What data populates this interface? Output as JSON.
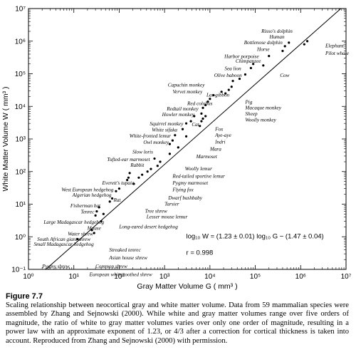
{
  "chart_data": {
    "type": "scatter",
    "scale": "log-log",
    "xlabel": "Gray Matter Volume  G ( mm³ )",
    "ylabel": "White Matter Volume  W ( mm³ )",
    "xlim": [
      1,
      10000000
    ],
    "ylim": [
      0.1,
      10000000
    ],
    "x_ticks": [
      1,
      10,
      100,
      1000,
      10000,
      100000,
      1000000,
      10000000
    ],
    "y_ticks": [
      0.1,
      1,
      10,
      100,
      1000,
      10000,
      100000,
      1000000,
      10000000
    ],
    "x_tick_labels": [
      "10⁰",
      "10¹",
      "10²",
      "10³",
      "10⁴",
      "10⁵",
      "10⁶",
      "10⁷"
    ],
    "y_tick_labels": [
      "10⁻¹",
      "10⁰",
      "10¹",
      "10²",
      "10³",
      "10⁴",
      "10⁵",
      "10⁶",
      "10⁷"
    ],
    "grid": false,
    "fit": {
      "slope": 1.23,
      "intercept": -1.47
    },
    "equation": "log₁₀ W = (1.23 ± 0.01) log₁₀ G − (1.47 ± 0.04)",
    "r_text": "r = 0.998",
    "points": [
      {
        "name": "Pygmy shrew",
        "x": 12,
        "y": 0.85
      },
      {
        "name": "Common shrew",
        "x": 25,
        "y": 1.6
      },
      {
        "name": "European white-toothed shrew",
        "x": 28,
        "y": 1.3
      },
      {
        "name": "Asian house shrew",
        "x": 40,
        "y": 3
      },
      {
        "name": "Streaked tenrec",
        "x": 45,
        "y": 5
      },
      {
        "name": "Small Madagascar hedgehog",
        "x": 30,
        "y": 4.5
      },
      {
        "name": "South African giant shrew",
        "x": 32,
        "y": 6
      },
      {
        "name": "Water shrew",
        "x": 36,
        "y": 8
      },
      {
        "name": "Large Madagascar hedgehog",
        "x": 62,
        "y": 12
      },
      {
        "name": "Mouse",
        "x": 70,
        "y": 15
      },
      {
        "name": "Tenrec",
        "x": 85,
        "y": 25
      },
      {
        "name": "Fisherman bat",
        "x": 100,
        "y": 30
      },
      {
        "name": "Rat",
        "x": 150,
        "y": 55
      },
      {
        "name": "Algerian hedgehog",
        "x": 160,
        "y": 65
      },
      {
        "name": "West European hedgehog",
        "x": 170,
        "y": 90
      },
      {
        "name": "Long-eared desert hedgehog",
        "x": 210,
        "y": 42
      },
      {
        "name": "Lesser mouse lemur",
        "x": 270,
        "y": 65
      },
      {
        "name": "Tree shrew",
        "x": 320,
        "y": 80
      },
      {
        "name": "Tarsier",
        "x": 420,
        "y": 100
      },
      {
        "name": "Dwarf bushbaby",
        "x": 500,
        "y": 120
      },
      {
        "name": "Flying fox",
        "x": 700,
        "y": 150
      },
      {
        "name": "Everett's tupaia",
        "x": 600,
        "y": 250
      },
      {
        "name": "Pygmy marmoset",
        "x": 800,
        "y": 200
      },
      {
        "name": "Red-tailed sportive lemur",
        "x": 1300,
        "y": 350
      },
      {
        "name": "Woolly lemur",
        "x": 2000,
        "y": 550
      },
      {
        "name": "Rabbit",
        "x": 1300,
        "y": 700
      },
      {
        "name": "Tufted-ear marmoset",
        "x": 1500,
        "y": 900
      },
      {
        "name": "Slow loris",
        "x": 1700,
        "y": 1300
      },
      {
        "name": "Marmoset",
        "x": 3000,
        "y": 1200
      },
      {
        "name": "Owl monkey",
        "x": 2500,
        "y": 2000
      },
      {
        "name": "White-fronted lemur",
        "x": 3000,
        "y": 3000
      },
      {
        "name": "White sifaka",
        "x": 3800,
        "y": 3500
      },
      {
        "name": "Squirrel monkey",
        "x": 4500,
        "y": 5000
      },
      {
        "name": "Mara",
        "x": 6000,
        "y": 2500
      },
      {
        "name": "Indri",
        "x": 6500,
        "y": 3500
      },
      {
        "name": "Aye-aye",
        "x": 7000,
        "y": 4200
      },
      {
        "name": "Fox",
        "x": 8000,
        "y": 5000
      },
      {
        "name": "Cat",
        "x": 6500,
        "y": 6000
      },
      {
        "name": "Howler monkey",
        "x": 7000,
        "y": 9000
      },
      {
        "name": "Redtail monkey",
        "x": 8000,
        "y": 11000
      },
      {
        "name": "Red colobus",
        "x": 9000,
        "y": 14000
      },
      {
        "name": "Vervet monkey",
        "x": 10000,
        "y": 17000
      },
      {
        "name": "Capuchin monkey",
        "x": 12000,
        "y": 22000
      },
      {
        "name": "Lar gibbon",
        "x": 18000,
        "y": 28000
      },
      {
        "name": "Woolly monkey",
        "x": 22000,
        "y": 25000
      },
      {
        "name": "Sheep",
        "x": 26000,
        "y": 32000
      },
      {
        "name": "Macaque monkey",
        "x": 30000,
        "y": 40000
      },
      {
        "name": "Pig",
        "x": 32000,
        "y": 60000
      },
      {
        "name": "Olive baboon",
        "x": 45000,
        "y": 70000
      },
      {
        "name": "Sea lion",
        "x": 60000,
        "y": 95000
      },
      {
        "name": "Chimpanzee",
        "x": 80000,
        "y": 150000
      },
      {
        "name": "Harbor porpoise",
        "x": 90000,
        "y": 200000
      },
      {
        "name": "Cow",
        "x": 150000,
        "y": 180000
      },
      {
        "name": "Horse",
        "x": 200000,
        "y": 350000
      },
      {
        "name": "Bottlenose dolphin",
        "x": 400000,
        "y": 500000
      },
      {
        "name": "Human",
        "x": 450000,
        "y": 700000
      },
      {
        "name": "Risso's dolphin",
        "x": 550000,
        "y": 900000
      },
      {
        "name": "Pilot whale",
        "x": 1200000,
        "y": 800000
      },
      {
        "name": "Elephant",
        "x": 1400000,
        "y": 1000000
      }
    ],
    "labels": [
      {
        "text": "Risso's dolphin",
        "x": 300000,
        "y": 1800000,
        "anchor": "middle"
      },
      {
        "text": "Human",
        "x": 300000,
        "y": 1200000,
        "anchor": "middle"
      },
      {
        "text": "Bottlenose dolphin",
        "x": 150000,
        "y": 800000,
        "anchor": "middle"
      },
      {
        "text": "Horse",
        "x": 150000,
        "y": 500000,
        "anchor": "middle"
      },
      {
        "text": "Harbor porpoise",
        "x": 50000,
        "y": 300000,
        "anchor": "middle"
      },
      {
        "text": "Chimpanzee",
        "x": 70000,
        "y": 220000,
        "anchor": "middle"
      },
      {
        "text": "Sea lion",
        "x": 32000,
        "y": 130000,
        "anchor": "middle"
      },
      {
        "text": "Olive baboon",
        "x": 25000,
        "y": 80000,
        "anchor": "middle"
      },
      {
        "text": "Elephant",
        "x": 3500000,
        "y": 650000,
        "anchor": "start"
      },
      {
        "text": "Pilot whale",
        "x": 3500000,
        "y": 380000,
        "anchor": "start"
      },
      {
        "text": "Cow",
        "x": 350000,
        "y": 80000,
        "anchor": "start"
      },
      {
        "text": "Capuchin monkey",
        "x": 3000,
        "y": 40000,
        "anchor": "middle"
      },
      {
        "text": "Vervet monkey",
        "x": 3200,
        "y": 25000,
        "anchor": "middle"
      },
      {
        "text": "Lar gibbon",
        "x": 15000,
        "y": 20000,
        "anchor": "middle"
      },
      {
        "text": "Red colobus",
        "x": 6000,
        "y": 11000,
        "anchor": "middle"
      },
      {
        "text": "Redtail monkey",
        "x": 2500,
        "y": 7500,
        "anchor": "middle"
      },
      {
        "text": "Howler monkey",
        "x": 2000,
        "y": 5000,
        "anchor": "middle"
      },
      {
        "text": "Pig",
        "x": 60000,
        "y": 12000,
        "anchor": "start"
      },
      {
        "text": "Macaque monkey",
        "x": 60000,
        "y": 8000,
        "anchor": "start"
      },
      {
        "text": "Sheep",
        "x": 60000,
        "y": 5200,
        "anchor": "start"
      },
      {
        "text": "Woolly monkey",
        "x": 60000,
        "y": 3400,
        "anchor": "start"
      },
      {
        "text": "Squirrel monkey",
        "x": 1100,
        "y": 2600,
        "anchor": "middle"
      },
      {
        "text": "Cat",
        "x": 4800,
        "y": 2500,
        "anchor": "middle"
      },
      {
        "text": "White sifaka",
        "x": 1000,
        "y": 1700,
        "anchor": "middle"
      },
      {
        "text": "White-fronted lemur",
        "x": 480,
        "y": 1100,
        "anchor": "middle"
      },
      {
        "text": "Owl monkey",
        "x": 650,
        "y": 700,
        "anchor": "middle"
      },
      {
        "text": "Fox",
        "x": 13000,
        "y": 1800,
        "anchor": "start"
      },
      {
        "text": "Aye-aye",
        "x": 13000,
        "y": 1150,
        "anchor": "start"
      },
      {
        "text": "Indri",
        "x": 13000,
        "y": 730,
        "anchor": "start"
      },
      {
        "text": "Mara",
        "x": 10000,
        "y": 440,
        "anchor": "start"
      },
      {
        "text": "Slow loris",
        "x": 330,
        "y": 360,
        "anchor": "middle"
      },
      {
        "text": "Marmoset",
        "x": 5000,
        "y": 260,
        "anchor": "start"
      },
      {
        "text": "Tufted-ear marmoset",
        "x": 160,
        "y": 210,
        "anchor": "middle"
      },
      {
        "text": "Rabbit",
        "x": 250,
        "y": 140,
        "anchor": "middle"
      },
      {
        "text": "Woolly lemur",
        "x": 2800,
        "y": 110,
        "anchor": "start"
      },
      {
        "text": "Red-tailed sportive lemur",
        "x": 1500,
        "y": 65,
        "anchor": "start"
      },
      {
        "text": "Everett's tupaia",
        "x": 95,
        "y": 40,
        "anchor": "middle"
      },
      {
        "text": "Pygmy marmoset",
        "x": 1500,
        "y": 40,
        "anchor": "start"
      },
      {
        "text": "Flying fox",
        "x": 1500,
        "y": 25,
        "anchor": "start"
      },
      {
        "text": "West European hedgehog",
        "x": 20,
        "y": 25,
        "anchor": "middle"
      },
      {
        "text": "Algerian hedgehog",
        "x": 25,
        "y": 17,
        "anchor": "middle"
      },
      {
        "text": "Dwarf bushbaby",
        "x": 1200,
        "y": 14,
        "anchor": "start"
      },
      {
        "text": "Rat",
        "x": 90,
        "y": 12,
        "anchor": "middle"
      },
      {
        "text": "Tarsier",
        "x": 1000,
        "y": 9,
        "anchor": "start"
      },
      {
        "text": "Fisherman bat",
        "x": 18,
        "y": 8,
        "anchor": "middle"
      },
      {
        "text": "Tree shrew",
        "x": 370,
        "y": 5.5,
        "anchor": "start"
      },
      {
        "text": "Tenrec",
        "x": 20,
        "y": 5.2,
        "anchor": "middle"
      },
      {
        "text": "Lesser mouse lemur",
        "x": 400,
        "y": 3.7,
        "anchor": "start"
      },
      {
        "text": "Large Madagascar hedgehog",
        "x": 10,
        "y": 2.5,
        "anchor": "middle"
      },
      {
        "text": "Long-eared desert hedgehog",
        "x": 100,
        "y": 1.8,
        "anchor": "start"
      },
      {
        "text": "Mouse",
        "x": 28,
        "y": 1.65,
        "anchor": "middle"
      },
      {
        "text": "Water shrew",
        "x": 14,
        "y": 1.1,
        "anchor": "middle"
      },
      {
        "text": "South African giant shrew",
        "x": 6,
        "y": 0.75,
        "anchor": "middle"
      },
      {
        "text": "Small Madagascar hedgehog",
        "x": 6,
        "y": 0.52,
        "anchor": "middle"
      },
      {
        "text": "Streaked tenrec",
        "x": 60,
        "y": 0.35,
        "anchor": "start"
      },
      {
        "text": "Asian house shrew",
        "x": 60,
        "y": 0.2,
        "anchor": "start"
      },
      {
        "text": "Pygmy shrew",
        "x": 4,
        "y": 0.11,
        "anchor": "middle"
      },
      {
        "text": "Common shrew",
        "x": 30,
        "y": 0.11,
        "anchor": "start"
      },
      {
        "text": "European white-toothed shrew",
        "x": 22,
        "y": 0.062,
        "anchor": "start"
      }
    ]
  },
  "caption": {
    "title": "Figure 7.7",
    "text": "Scaling relationship between neocortical gray and white matter volume. Data from 59 mammalian species were assembled by Zhang and Sejnowski (2000). While white and gray matter volumes range over five orders of magnitude, the ratio of white to gray matter volumes varies over only one order of magnitude, resulting in a power law with an approximate exponent of 1.23, or 4/3 after a correction for cortical thickness is taken into account. Reproduced from Zhang and Sejnowski (2000) with permission."
  }
}
